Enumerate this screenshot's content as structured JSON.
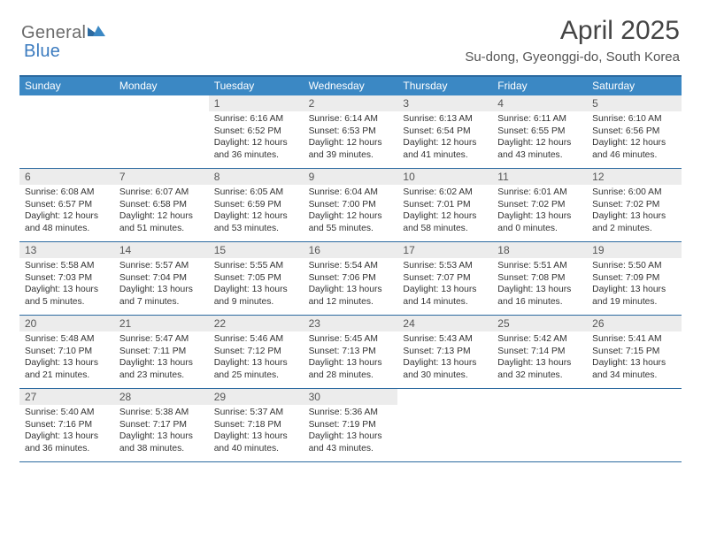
{
  "logo": {
    "word1": "General",
    "word2": "Blue"
  },
  "title": "April 2025",
  "location": "Su-dong, Gyeonggi-do, South Korea",
  "colors": {
    "header_bg": "#3b88c4",
    "border": "#2c6aa0",
    "daynum_bg": "#ececec",
    "text": "#333333",
    "logo_gray": "#6b6b6b",
    "logo_blue": "#3b7bbf"
  },
  "day_names": [
    "Sunday",
    "Monday",
    "Tuesday",
    "Wednesday",
    "Thursday",
    "Friday",
    "Saturday"
  ],
  "weeks": [
    [
      null,
      null,
      {
        "n": "1",
        "sunrise": "6:16 AM",
        "sunset": "6:52 PM",
        "dl": "12 hours and 36 minutes."
      },
      {
        "n": "2",
        "sunrise": "6:14 AM",
        "sunset": "6:53 PM",
        "dl": "12 hours and 39 minutes."
      },
      {
        "n": "3",
        "sunrise": "6:13 AM",
        "sunset": "6:54 PM",
        "dl": "12 hours and 41 minutes."
      },
      {
        "n": "4",
        "sunrise": "6:11 AM",
        "sunset": "6:55 PM",
        "dl": "12 hours and 43 minutes."
      },
      {
        "n": "5",
        "sunrise": "6:10 AM",
        "sunset": "6:56 PM",
        "dl": "12 hours and 46 minutes."
      }
    ],
    [
      {
        "n": "6",
        "sunrise": "6:08 AM",
        "sunset": "6:57 PM",
        "dl": "12 hours and 48 minutes."
      },
      {
        "n": "7",
        "sunrise": "6:07 AM",
        "sunset": "6:58 PM",
        "dl": "12 hours and 51 minutes."
      },
      {
        "n": "8",
        "sunrise": "6:05 AM",
        "sunset": "6:59 PM",
        "dl": "12 hours and 53 minutes."
      },
      {
        "n": "9",
        "sunrise": "6:04 AM",
        "sunset": "7:00 PM",
        "dl": "12 hours and 55 minutes."
      },
      {
        "n": "10",
        "sunrise": "6:02 AM",
        "sunset": "7:01 PM",
        "dl": "12 hours and 58 minutes."
      },
      {
        "n": "11",
        "sunrise": "6:01 AM",
        "sunset": "7:02 PM",
        "dl": "13 hours and 0 minutes."
      },
      {
        "n": "12",
        "sunrise": "6:00 AM",
        "sunset": "7:02 PM",
        "dl": "13 hours and 2 minutes."
      }
    ],
    [
      {
        "n": "13",
        "sunrise": "5:58 AM",
        "sunset": "7:03 PM",
        "dl": "13 hours and 5 minutes."
      },
      {
        "n": "14",
        "sunrise": "5:57 AM",
        "sunset": "7:04 PM",
        "dl": "13 hours and 7 minutes."
      },
      {
        "n": "15",
        "sunrise": "5:55 AM",
        "sunset": "7:05 PM",
        "dl": "13 hours and 9 minutes."
      },
      {
        "n": "16",
        "sunrise": "5:54 AM",
        "sunset": "7:06 PM",
        "dl": "13 hours and 12 minutes."
      },
      {
        "n": "17",
        "sunrise": "5:53 AM",
        "sunset": "7:07 PM",
        "dl": "13 hours and 14 minutes."
      },
      {
        "n": "18",
        "sunrise": "5:51 AM",
        "sunset": "7:08 PM",
        "dl": "13 hours and 16 minutes."
      },
      {
        "n": "19",
        "sunrise": "5:50 AM",
        "sunset": "7:09 PM",
        "dl": "13 hours and 19 minutes."
      }
    ],
    [
      {
        "n": "20",
        "sunrise": "5:48 AM",
        "sunset": "7:10 PM",
        "dl": "13 hours and 21 minutes."
      },
      {
        "n": "21",
        "sunrise": "5:47 AM",
        "sunset": "7:11 PM",
        "dl": "13 hours and 23 minutes."
      },
      {
        "n": "22",
        "sunrise": "5:46 AM",
        "sunset": "7:12 PM",
        "dl": "13 hours and 25 minutes."
      },
      {
        "n": "23",
        "sunrise": "5:45 AM",
        "sunset": "7:13 PM",
        "dl": "13 hours and 28 minutes."
      },
      {
        "n": "24",
        "sunrise": "5:43 AM",
        "sunset": "7:13 PM",
        "dl": "13 hours and 30 minutes."
      },
      {
        "n": "25",
        "sunrise": "5:42 AM",
        "sunset": "7:14 PM",
        "dl": "13 hours and 32 minutes."
      },
      {
        "n": "26",
        "sunrise": "5:41 AM",
        "sunset": "7:15 PM",
        "dl": "13 hours and 34 minutes."
      }
    ],
    [
      {
        "n": "27",
        "sunrise": "5:40 AM",
        "sunset": "7:16 PM",
        "dl": "13 hours and 36 minutes."
      },
      {
        "n": "28",
        "sunrise": "5:38 AM",
        "sunset": "7:17 PM",
        "dl": "13 hours and 38 minutes."
      },
      {
        "n": "29",
        "sunrise": "5:37 AM",
        "sunset": "7:18 PM",
        "dl": "13 hours and 40 minutes."
      },
      {
        "n": "30",
        "sunrise": "5:36 AM",
        "sunset": "7:19 PM",
        "dl": "13 hours and 43 minutes."
      },
      null,
      null,
      null
    ]
  ],
  "labels": {
    "sunrise": "Sunrise: ",
    "sunset": "Sunset: ",
    "daylight": "Daylight: "
  }
}
